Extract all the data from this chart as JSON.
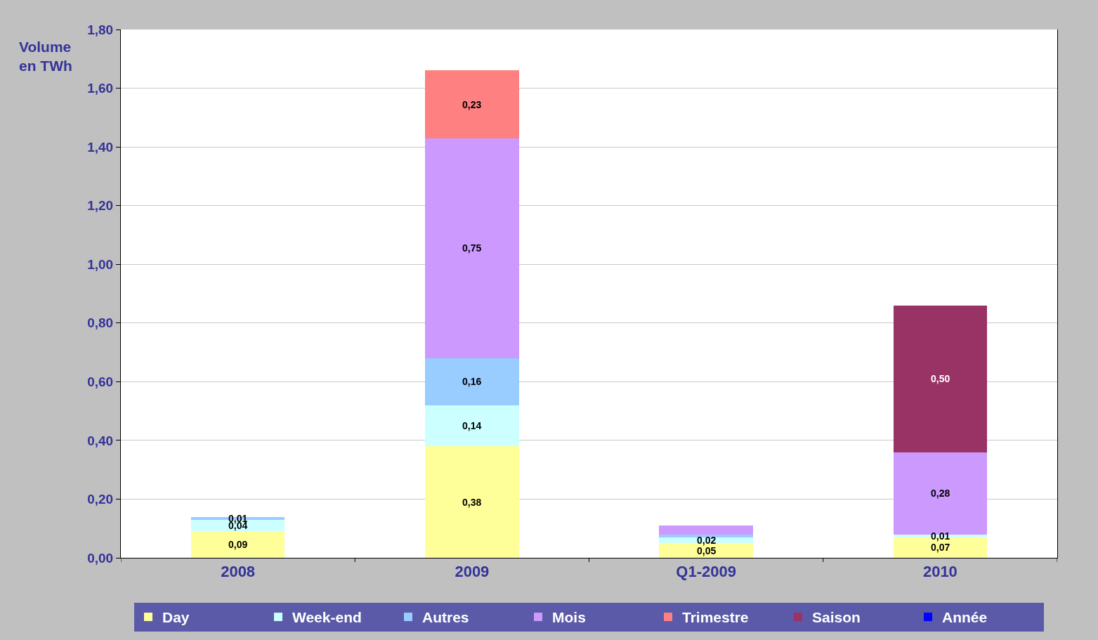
{
  "chart_data": {
    "type": "bar",
    "stacked": true,
    "ylabel": "Volume en TWh",
    "categories": [
      "2008",
      "2009",
      "Q1-2009",
      "2010"
    ],
    "series": [
      {
        "name": "Day",
        "color": "#ffff99",
        "values": [
          0.09,
          0.38,
          0.05,
          0.07
        ],
        "value_labels": [
          "0,09",
          "0,38",
          "0,05",
          "0,07"
        ]
      },
      {
        "name": "Week-end",
        "color": "#ccffff",
        "values": [
          0.04,
          0.14,
          0.02,
          0.01
        ],
        "value_labels": [
          "0,04",
          "0,14",
          "0,02",
          "0,01"
        ]
      },
      {
        "name": "Autres",
        "color": "#99ccff",
        "values": [
          0.01,
          0.16,
          0.01,
          null
        ],
        "value_labels": [
          "0,01",
          "0,16",
          null,
          null
        ]
      },
      {
        "name": "Mois",
        "color": "#cc99ff",
        "values": [
          null,
          0.75,
          0.03,
          0.28
        ],
        "value_labels": [
          null,
          "0,75",
          null,
          "0,28"
        ]
      },
      {
        "name": "Trimestre",
        "color": "#ff8080",
        "values": [
          null,
          0.23,
          null,
          null
        ],
        "value_labels": [
          null,
          "0,23",
          null,
          null
        ]
      },
      {
        "name": "Saison",
        "color": "#993366",
        "values": [
          null,
          null,
          null,
          0.5
        ],
        "value_labels": [
          null,
          null,
          null,
          "0,50"
        ]
      },
      {
        "name": "Année",
        "color": "#0000ff",
        "values": [
          null,
          null,
          null,
          null
        ],
        "value_labels": [
          null,
          null,
          null,
          null
        ]
      }
    ],
    "ylim": [
      0,
      1.8
    ],
    "yticks": [
      {
        "value": 0,
        "label": "0,00"
      },
      {
        "value": 0.2,
        "label": "0,20"
      },
      {
        "value": 0.4,
        "label": "0,40"
      },
      {
        "value": 0.6,
        "label": "0,60"
      },
      {
        "value": 0.8,
        "label": "0,80"
      },
      {
        "value": 1,
        "label": "1,00"
      },
      {
        "value": 1.2,
        "label": "1,20"
      },
      {
        "value": 1.4,
        "label": "1,40"
      },
      {
        "value": 1.6,
        "label": "1,60"
      },
      {
        "value": 1.8,
        "label": "1,80"
      }
    ],
    "grid": "y",
    "legend": "bottom"
  }
}
